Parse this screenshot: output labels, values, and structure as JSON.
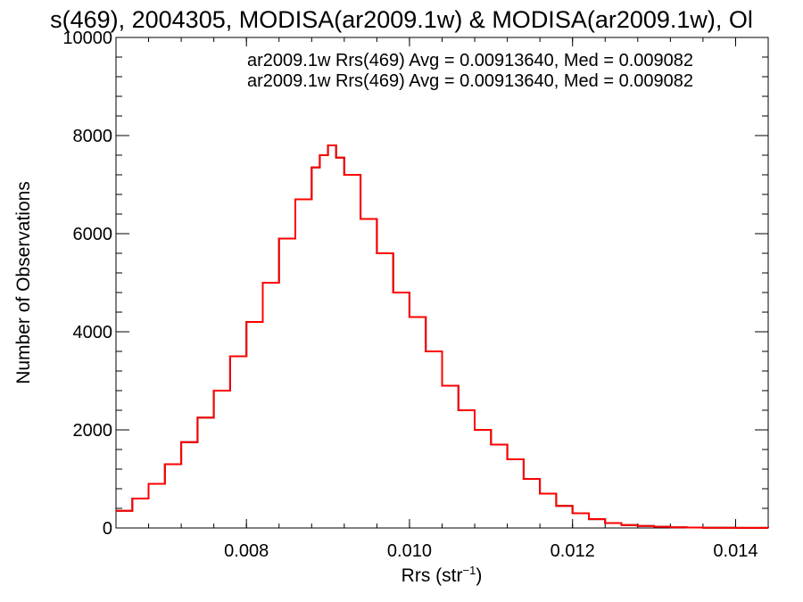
{
  "colors": {
    "background": "#ffffff",
    "axes": "#000000",
    "series_1": "#000000",
    "series_2": "#ff0000"
  },
  "chart_data": {
    "type": "line",
    "step": true,
    "title": "s(469), 2004305, MODISA(ar2009.1w) & MODISA(ar2009.1w), Ol",
    "xlabel": "Rrs (str",
    "xlabel_sup": "−1",
    "xlabel_suffix": ")",
    "ylabel": "Number of Observations",
    "xlim": [
      0.0064,
      0.0144
    ],
    "ylim": [
      0,
      10000
    ],
    "xticks": [
      0.008,
      0.01,
      0.012,
      0.014
    ],
    "xtick_labels": [
      "0.008",
      "0.010",
      "0.012",
      "0.014"
    ],
    "yticks": [
      0,
      2000,
      4000,
      6000,
      8000,
      10000
    ],
    "ytick_labels": [
      "0",
      "2000",
      "4000",
      "6000",
      "8000",
      "10000"
    ],
    "grid": false,
    "legend_position": "top-right",
    "annotations": [
      {
        "text": "ar2009.1w Rrs(469) Avg = 0.00913640, Med = 0.009082",
        "color": "#000000"
      },
      {
        "text": "ar2009.1w Rrs(469) Avg = 0.00913640, Med = 0.009082",
        "color": "#ff0000"
      }
    ],
    "x": [
      0.0064,
      0.0066,
      0.0068,
      0.007,
      0.0072,
      0.0074,
      0.0076,
      0.0078,
      0.008,
      0.0082,
      0.0084,
      0.0086,
      0.0088,
      0.0089,
      0.009,
      0.0091,
      0.0092,
      0.0094,
      0.0096,
      0.0098,
      0.01,
      0.0102,
      0.0104,
      0.0106,
      0.0108,
      0.011,
      0.0112,
      0.0114,
      0.0116,
      0.0118,
      0.012,
      0.0122,
      0.0124,
      0.0126,
      0.0128,
      0.013,
      0.0132,
      0.0134,
      0.0136,
      0.0138,
      0.014,
      0.0142,
      0.0144
    ],
    "series": [
      {
        "values": [
          350,
          600,
          900,
          1300,
          1750,
          2250,
          2800,
          3500,
          4200,
          5000,
          5900,
          6700,
          7350,
          7600,
          7800,
          7550,
          7200,
          6300,
          5600,
          4800,
          4300,
          3600,
          2900,
          2400,
          2000,
          1700,
          1400,
          1000,
          700,
          450,
          300,
          180,
          100,
          60,
          40,
          25,
          15,
          10,
          5,
          3,
          2,
          1,
          0
        ]
      },
      {
        "values": [
          350,
          600,
          900,
          1300,
          1750,
          2250,
          2800,
          3500,
          4200,
          5000,
          5900,
          6700,
          7350,
          7600,
          7800,
          7550,
          7200,
          6300,
          5600,
          4800,
          4300,
          3600,
          2900,
          2400,
          2000,
          1700,
          1400,
          1000,
          700,
          450,
          300,
          180,
          100,
          60,
          40,
          25,
          15,
          10,
          5,
          3,
          2,
          1,
          0
        ]
      }
    ]
  }
}
